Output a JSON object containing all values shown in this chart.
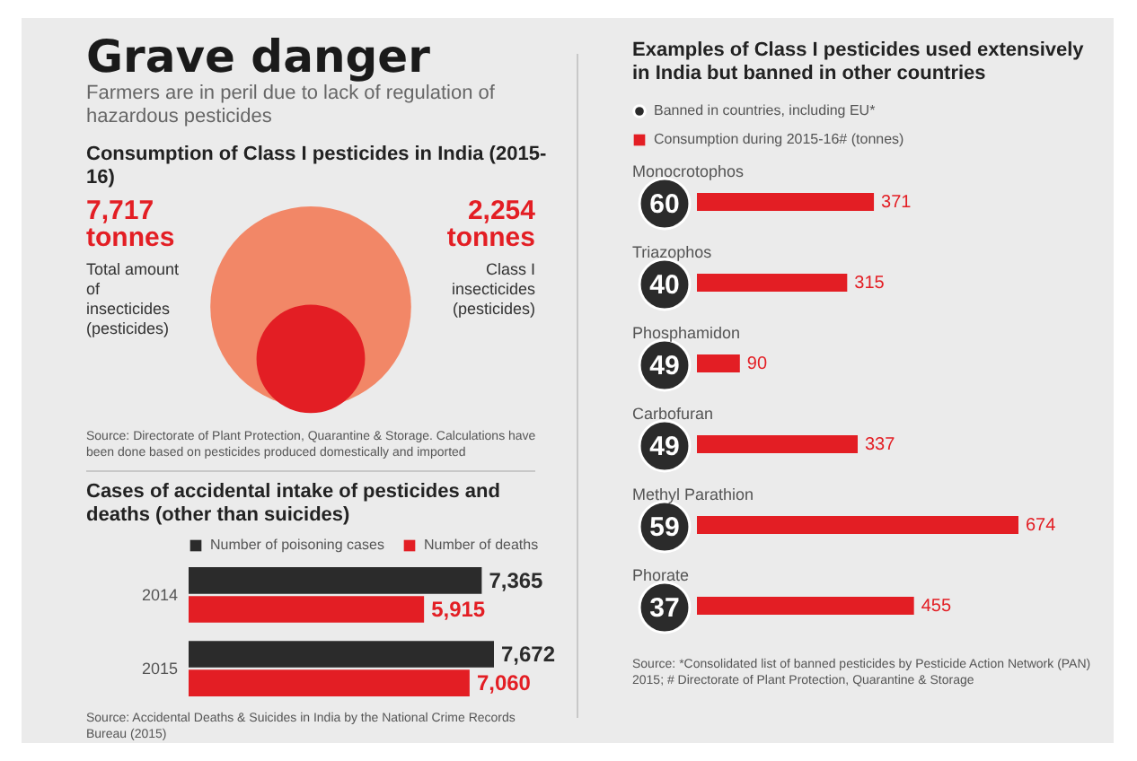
{
  "chart_data": [
    {
      "type": "other",
      "title": "Grave danger",
      "subtitle": "Farmers are in peril due to lack of regulation of hazardous pesticides",
      "annotations": [
        "Consumption of Class I pesticides in India (2015-16)",
        "Source: Directorate of Plant Protection, Quarantine & Storage. Calculations have been done based on pesticides produced domestically and imported"
      ],
      "categories": [
        "Total amount of insecticides (pesticides)",
        "Class I insecticides (pesticides)"
      ],
      "values": [
        7717,
        2254
      ],
      "value_labels": [
        "7,717 tonnes",
        "2,254 tonnes"
      ],
      "colors": [
        "#f28767",
        "#e31e24"
      ]
    },
    {
      "type": "bar",
      "orientation": "horizontal",
      "title": "Cases of accidental intake of pesticides and deaths (other than suicides)",
      "categories": [
        "2014",
        "2015"
      ],
      "series": [
        {
          "name": "Number of poisoning cases",
          "color": "#2b2b2b",
          "values": [
            7365,
            7672
          ],
          "value_labels": [
            "7,365",
            "7,672"
          ]
        },
        {
          "name": "Number of deaths",
          "color": "#e31e24",
          "values": [
            5915,
            7060
          ],
          "value_labels": [
            "5,915",
            "7,060"
          ]
        }
      ],
      "legend": "top right",
      "annotations": [
        "Source: Accidental Deaths & Suicides in India by the National Crime Records Bureau (2015)"
      ]
    },
    {
      "type": "other",
      "title": "Examples of Class I pesticides used extensively in India but banned in other countries",
      "categories": [
        "Monocrotophos",
        "Triazophos",
        "Phosphamidon",
        "Carbofuran",
        "Methyl Parathion",
        "Phorate"
      ],
      "series": [
        {
          "name": "Banned in countries, including EU*",
          "color": "#2b2b2b",
          "values": [
            60,
            40,
            49,
            49,
            59,
            37
          ],
          "value_labels": [
            "60",
            "40",
            "49",
            "49",
            "59",
            "37"
          ]
        }
      ],
      "legend": "top right"
    },
    {
      "type": "bar",
      "orientation": "horizontal",
      "categories": [
        null,
        null,
        null,
        null,
        null,
        null
      ],
      "series": [
        {
          "name": "Consumption during 2015-16# (tonnes)",
          "color": "#e31e24",
          "values": [
            371,
            315,
            90,
            337,
            674,
            455
          ]
        }
      ],
      "data_labels": true,
      "legend": "top left",
      "annotations": [
        "Source: *Consolidated list of banned pesticides by Pesticide Action Network (PAN) 2015; # Directorate of Plant Protection, Quarantine & Storage"
      ]
    }
  ]
}
